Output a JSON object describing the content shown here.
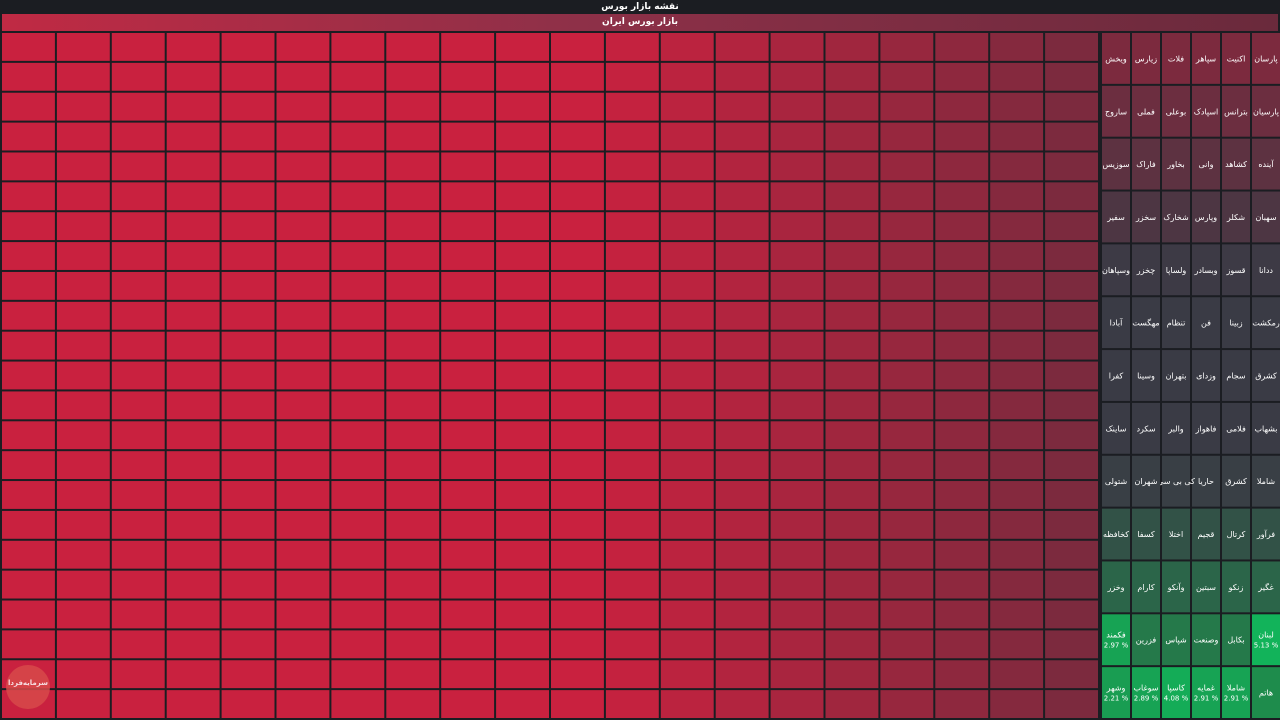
{
  "page": {
    "title": "نقشه بازار بورس",
    "section": "بازار بورس ایران"
  },
  "logo": {
    "text": "سرمایه‌فردا"
  },
  "colors": {
    "neg_strong": "#c9213f",
    "neg_mid": "#7c2a3e",
    "neutral": "#3a3b45",
    "pos_mid": "#1e8c4c",
    "pos_strong": "#12b35a"
  },
  "chart_data": {
    "type": "heatmap",
    "title": "نقشه بازار بورس",
    "subtitle": "بازار بورس ایران",
    "columns": [
      {
        "tiles": [
          {
            "name": "پارسان",
            "pct": null
          },
          {
            "name": "پارسیان",
            "pct": null
          },
          {
            "name": "آینده",
            "pct": null
          },
          {
            "name": "سهبان",
            "pct": null
          },
          {
            "name": "ددانا",
            "pct": null
          },
          {
            "name": "رمکشت",
            "pct": null
          },
          {
            "name": "کشرق",
            "pct": null
          },
          {
            "name": "بشهاب",
            "pct": null
          },
          {
            "name": "شاملا",
            "pct": null
          },
          {
            "name": "فرآور",
            "pct": null
          },
          {
            "name": "غگیر",
            "pct": null
          },
          {
            "name": "لبنان",
            "pct": 5.13
          },
          {
            "name": "هاتم",
            "pct": null
          }
        ]
      },
      {
        "tiles": [
          {
            "name": "اکنیت",
            "pct": null
          },
          {
            "name": "بترانس",
            "pct": null
          },
          {
            "name": "کشاهد",
            "pct": null
          },
          {
            "name": "شکلر",
            "pct": null
          },
          {
            "name": "قسوز",
            "pct": null
          },
          {
            "name": "زبینا",
            "pct": null
          },
          {
            "name": "سجام",
            "pct": null
          },
          {
            "name": "فلامی",
            "pct": null
          },
          {
            "name": "کشرق",
            "pct": null
          },
          {
            "name": "کرتال",
            "pct": null
          },
          {
            "name": "زنکو",
            "pct": null
          },
          {
            "name": "بکابل",
            "pct": null
          },
          {
            "name": "شاملا",
            "pct": 2.91
          }
        ]
      },
      {
        "tiles": [
          {
            "name": "سپاهر",
            "pct": null
          },
          {
            "name": "اسپادک",
            "pct": null
          },
          {
            "name": "وانی",
            "pct": null
          },
          {
            "name": "وپارس",
            "pct": null
          },
          {
            "name": "وبسادر",
            "pct": null
          },
          {
            "name": "فن",
            "pct": null
          },
          {
            "name": "وزدای",
            "pct": null
          },
          {
            "name": "فاهواز",
            "pct": null
          },
          {
            "name": "حاریا",
            "pct": null
          },
          {
            "name": "قجیم",
            "pct": null
          },
          {
            "name": "سبتین",
            "pct": null
          },
          {
            "name": "وصنعت",
            "pct": null
          },
          {
            "name": "غمایه",
            "pct": 2.91
          }
        ]
      },
      {
        "tiles": [
          {
            "name": "فلات",
            "pct": null
          },
          {
            "name": "بوعلی",
            "pct": null
          },
          {
            "name": "بخاور",
            "pct": null
          },
          {
            "name": "شخارک",
            "pct": null
          },
          {
            "name": "ولساپا",
            "pct": null
          },
          {
            "name": "تنظام",
            "pct": null
          },
          {
            "name": "بتهران",
            "pct": null
          },
          {
            "name": "والبر",
            "pct": null
          },
          {
            "name": "کی بی سی",
            "pct": null
          },
          {
            "name": "اختلا",
            "pct": null
          },
          {
            "name": "وآنکو",
            "pct": null
          },
          {
            "name": "شپاس",
            "pct": null
          },
          {
            "name": "کاسپا",
            "pct": 4.08
          }
        ]
      },
      {
        "tiles": [
          {
            "name": "زیارس",
            "pct": null
          },
          {
            "name": "فملی",
            "pct": null
          },
          {
            "name": "فاراک",
            "pct": null
          },
          {
            "name": "سخزر",
            "pct": null
          },
          {
            "name": "چخزر",
            "pct": null
          },
          {
            "name": "مهگست",
            "pct": null
          },
          {
            "name": "وسینا",
            "pct": null
          },
          {
            "name": "سکرد",
            "pct": null
          },
          {
            "name": "شهران",
            "pct": null
          },
          {
            "name": "کسفا",
            "pct": null
          },
          {
            "name": "کارام",
            "pct": null
          },
          {
            "name": "فزرین",
            "pct": null
          },
          {
            "name": "سوغاب",
            "pct": 2.89
          }
        ]
      },
      {
        "tiles": [
          {
            "name": "ویخش",
            "pct": null
          },
          {
            "name": "ساروج",
            "pct": null
          },
          {
            "name": "سوزیس",
            "pct": null
          },
          {
            "name": "سفیر",
            "pct": null
          },
          {
            "name": "وسپاهان",
            "pct": null
          },
          {
            "name": "آبادا",
            "pct": null
          },
          {
            "name": "کفرا",
            "pct": null
          },
          {
            "name": "ساینک",
            "pct": null
          },
          {
            "name": "شتولی",
            "pct": null
          },
          {
            "name": "کخافظه",
            "pct": null
          },
          {
            "name": "وخزر",
            "pct": null
          },
          {
            "name": "فکمند",
            "pct": 2.97
          },
          {
            "name": "وشهر",
            "pct": 2.21
          }
        ]
      }
    ]
  }
}
